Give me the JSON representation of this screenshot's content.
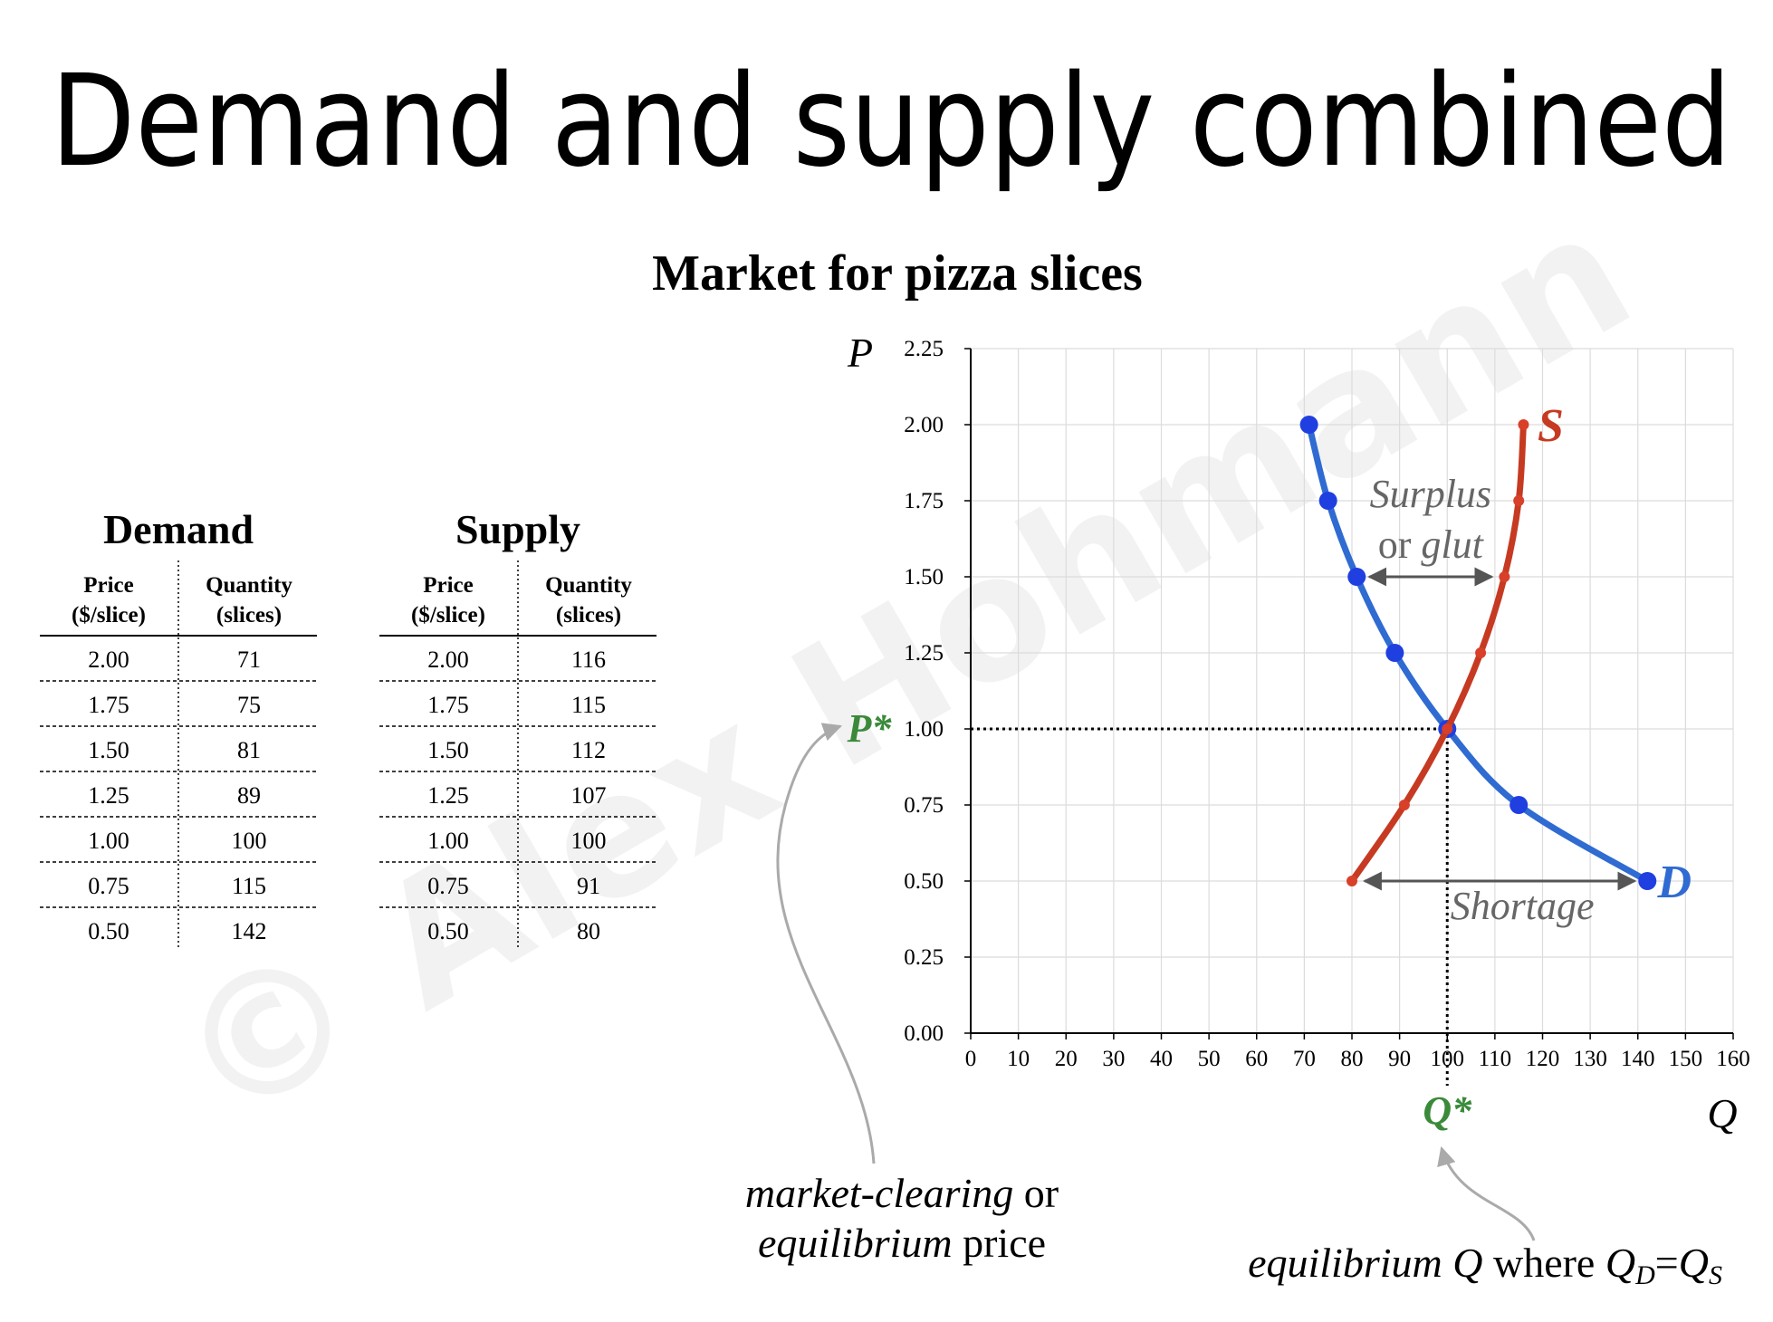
{
  "title": "Demand and supply combined",
  "watermark": "© Alex Hohmann",
  "tables": [
    {
      "title": "Demand",
      "headers": [
        [
          "Price",
          "($/slice)"
        ],
        [
          "Quantity",
          "(slices)"
        ]
      ],
      "rows": [
        [
          "2.00",
          "71"
        ],
        [
          "1.75",
          "75"
        ],
        [
          "1.50",
          "81"
        ],
        [
          "1.25",
          "89"
        ],
        [
          "1.00",
          "100"
        ],
        [
          "0.75",
          "115"
        ],
        [
          "0.50",
          "142"
        ]
      ]
    },
    {
      "title": "Supply",
      "headers": [
        [
          "Price",
          "($/slice)"
        ],
        [
          "Quantity",
          "(slices)"
        ]
      ],
      "rows": [
        [
          "2.00",
          "116"
        ],
        [
          "1.75",
          "115"
        ],
        [
          "1.50",
          "112"
        ],
        [
          "1.25",
          "107"
        ],
        [
          "1.00",
          "100"
        ],
        [
          "0.75",
          "91"
        ],
        [
          "0.50",
          "80"
        ]
      ]
    }
  ],
  "chart_data": {
    "type": "line",
    "title": "Market for pizza slices",
    "x_label": "Q",
    "y_label": "P",
    "xlim": [
      0,
      160
    ],
    "xticks": [
      0,
      10,
      20,
      30,
      40,
      50,
      60,
      70,
      80,
      90,
      100,
      110,
      120,
      130,
      140,
      150,
      160
    ],
    "ylim": [
      0,
      2.25
    ],
    "yticks": [
      {
        "value": 0,
        "label": "0.00"
      },
      0.25,
      {
        "value": 0.5,
        "label": "0.50"
      },
      0.75,
      {
        "value": 1,
        "label": "1.00"
      },
      1.25,
      {
        "value": 1.5,
        "label": "1.50"
      },
      1.75,
      {
        "value": 2,
        "label": "2.00"
      },
      2.25
    ],
    "grid": true,
    "series": [
      {
        "name": "D",
        "color": "#2f6bd1",
        "x": [
          71,
          75,
          81,
          89,
          100,
          115,
          142
        ],
        "values": [
          2,
          1.75,
          1.5,
          1.25,
          1,
          0.75,
          0.5
        ]
      },
      {
        "name": "S",
        "color": "#c63a22",
        "x": [
          116,
          115,
          112,
          107,
          100,
          91,
          80
        ],
        "values": [
          2,
          1.75,
          1.5,
          1.25,
          1,
          0.75,
          0.5
        ]
      }
    ],
    "equilibrium": {
      "price": 1,
      "quantity": 100,
      "price_label": "P*",
      "quantity_label": "Q*",
      "color": "#3a8a3a"
    },
    "annotations": {
      "surplus": [
        "Surplus",
        "or",
        "glut"
      ],
      "shortage": "Shortage"
    }
  },
  "notes": {
    "price": [
      "market-clearing",
      "or",
      "equilibrium",
      "price"
    ],
    "quantity": [
      "equilibrium",
      "Q",
      "where",
      "Q",
      "D",
      "=",
      "Q",
      "S"
    ]
  }
}
